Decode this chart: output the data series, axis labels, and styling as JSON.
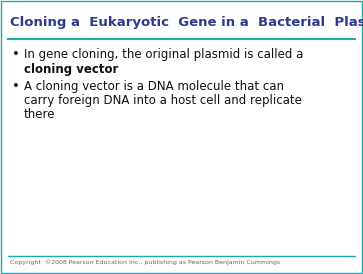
{
  "title": "Cloning a  Eukaryotic  Gene in a  Bacterial  Plasmid",
  "title_color": "#2E3A8C",
  "title_fontsize": 9.5,
  "bg_color": "#FFFFFF",
  "line_color": "#1AACAC",
  "bullet1_normal": "In gene cloning, the original plasmid is called a ",
  "bullet1_bold": "cloning vector",
  "bullet_fontsize": 8.5,
  "bullet_color": "#111111",
  "b2_line1": "A cloning vector is a DNA molecule that can",
  "b2_line2": "carry foreign DNA into a host cell and replicate",
  "b2_line3": "there",
  "copyright": "Copyright  ©2008 Pearson Education Inc., publishing as Pearson Benjamin Cummings",
  "copyright_fontsize": 4.5,
  "copyright_color": "#666666",
  "border_color": "#1AACAC",
  "border_linewidth": 1.0
}
